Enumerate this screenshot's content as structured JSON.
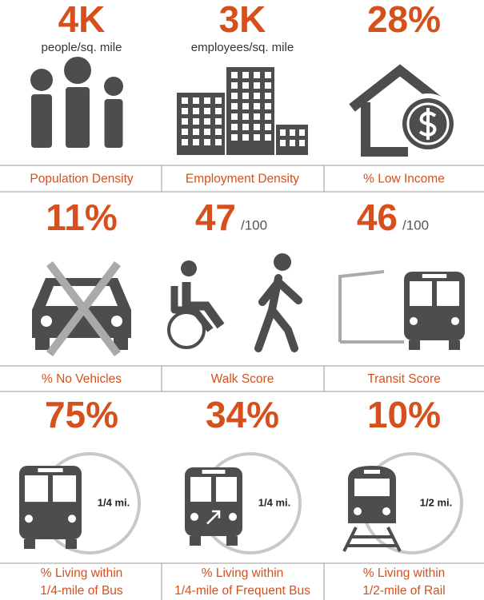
{
  "cells": [
    {
      "value": "4K",
      "unit": "people/sq. mile",
      "caption": [
        "Population Density"
      ]
    },
    {
      "value": "3K",
      "unit": "employees/sq. mile",
      "caption": [
        "Employment Density"
      ]
    },
    {
      "value": "28%",
      "caption": [
        "% Low Income"
      ]
    },
    {
      "value": "11%",
      "caption": [
        "% No Vehicles"
      ]
    },
    {
      "value": "47",
      "suffix": "/100",
      "caption": [
        "Walk Score"
      ]
    },
    {
      "value": "46",
      "suffix": "/100",
      "caption": [
        "Transit Score"
      ]
    },
    {
      "value": "75%",
      "distance": "1/4 mi.",
      "caption": [
        "% Living within",
        "1/4-mile of Bus"
      ]
    },
    {
      "value": "34%",
      "distance": "1/4 mi.",
      "caption": [
        "% Living within",
        "1/4-mile of Frequent Bus"
      ]
    },
    {
      "value": "10%",
      "distance": "1/2 mi.",
      "caption": [
        "% Living within",
        "1/2-mile of Rail"
      ]
    }
  ]
}
